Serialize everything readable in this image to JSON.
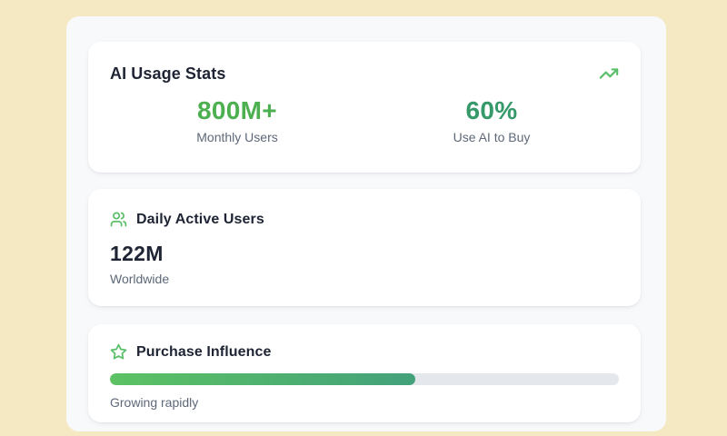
{
  "theme": {
    "page_background": "#f5e9c4",
    "panel_background": "#f8f9fb",
    "card_background": "#ffffff",
    "title_color": "#1e2433",
    "muted_text_color": "#5e6878",
    "accent_green": "#4caf50",
    "accent_teal_green": "#35996a",
    "icon_green": "#5bbf6a",
    "progress_gradient_start": "#5cc263",
    "progress_gradient_end": "#43a17b",
    "progress_track_color": "#e4e7ec"
  },
  "cards": {
    "usage": {
      "title": "AI Usage Stats",
      "icon": "trending-up-icon",
      "stats": [
        {
          "value": "800M+",
          "label": "Monthly Users"
        },
        {
          "value": "60%",
          "label": "Use AI to Buy"
        }
      ]
    },
    "daily": {
      "icon": "users-icon",
      "title": "Daily Active Users",
      "value": "122M",
      "label": "Worldwide"
    },
    "purchase": {
      "icon": "star-icon",
      "title": "Purchase Influence",
      "progress_percent": 60,
      "caption": "Growing rapidly"
    }
  }
}
